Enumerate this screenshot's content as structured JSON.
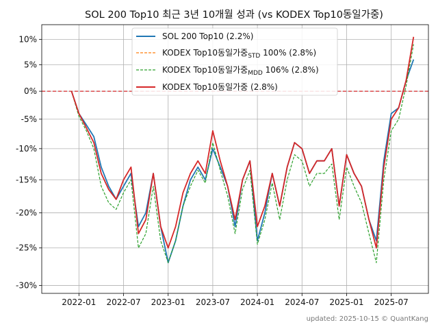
{
  "chart_data": {
    "type": "line",
    "title": "SOL 200 Top10 최근 3년 10개월 성과 (vs KODEX Top10동일가중)",
    "xlabel": "",
    "ylabel": "",
    "x_ticks": [
      "2022-01",
      "2022-07",
      "2023-01",
      "2023-07",
      "2024-01",
      "2024-07",
      "2025-01",
      "2025-07"
    ],
    "y_ticks": [
      {
        "value": 10,
        "label": "10%"
      },
      {
        "value": 5,
        "label": "5%"
      },
      {
        "value": 0,
        "label": "0%"
      },
      {
        "value": -5,
        "label": "-5%"
      },
      {
        "value": -10,
        "label": "-10%"
      },
      {
        "value": -15,
        "label": "-15%"
      },
      {
        "value": -20,
        "label": "-20%"
      },
      {
        "value": -25,
        "label": "-25%"
      },
      {
        "value": -30,
        "label": "-30%"
      }
    ],
    "xlim": [
      "2021-08",
      "2025-12"
    ],
    "ylim": [
      -31,
      13
    ],
    "y_scale": "log(1 + r)",
    "grid": true,
    "legend_position": "top",
    "reference_line": {
      "value": 0,
      "color": "#d62728",
      "style": "dashed"
    },
    "series": [
      {
        "name": "SOL 200 Top10 (2.2%)",
        "color": "#1f77b4",
        "style": "solid",
        "points": [
          [
            "2021-12",
            0
          ],
          [
            "2022-01",
            -4
          ],
          [
            "2022-02",
            -6
          ],
          [
            "2022-03",
            -8
          ],
          [
            "2022-04",
            -13
          ],
          [
            "2022-05",
            -16
          ],
          [
            "2022-06",
            -18
          ],
          [
            "2022-07",
            -16
          ],
          [
            "2022-08",
            -14
          ],
          [
            "2022-09",
            -22
          ],
          [
            "2022-10",
            -20
          ],
          [
            "2022-11",
            -14
          ],
          [
            "2022-12",
            -22
          ],
          [
            "2023-01",
            -27
          ],
          [
            "2023-02",
            -24
          ],
          [
            "2023-03",
            -19
          ],
          [
            "2023-04",
            -15
          ],
          [
            "2023-05",
            -13
          ],
          [
            "2023-06",
            -15
          ],
          [
            "2023-07",
            -10
          ],
          [
            "2023-08",
            -13
          ],
          [
            "2023-09",
            -16
          ],
          [
            "2023-10",
            -22
          ],
          [
            "2023-11",
            -15
          ],
          [
            "2023-12",
            -12
          ],
          [
            "2024-01",
            -24
          ],
          [
            "2024-02",
            -20
          ],
          [
            "2024-03",
            -14
          ],
          [
            "2024-04",
            -19
          ],
          [
            "2024-05",
            -13
          ],
          [
            "2024-06",
            -9
          ],
          [
            "2024-07",
            -10
          ],
          [
            "2024-08",
            -14
          ],
          [
            "2024-09",
            -12
          ],
          [
            "2024-10",
            -12
          ],
          [
            "2024-11",
            -10
          ],
          [
            "2024-12",
            -19
          ],
          [
            "2025-01",
            -11
          ],
          [
            "2025-02",
            -14
          ],
          [
            "2025-03",
            -16
          ],
          [
            "2025-04",
            -21
          ],
          [
            "2025-05",
            -24
          ],
          [
            "2025-06",
            -12
          ],
          [
            "2025-07",
            -4
          ],
          [
            "2025-08",
            -3
          ],
          [
            "2025-09",
            2
          ],
          [
            "2025-10",
            6
          ]
        ]
      },
      {
        "name": "KODEX Top10동일가중",
        "name_subscript": "STD",
        "name_suffix": " 100% (2.8%)",
        "color": "#ff7f0e",
        "style": "dashed",
        "points": [
          [
            "2021-12",
            0
          ],
          [
            "2022-01",
            -4
          ],
          [
            "2022-02",
            -6.5
          ],
          [
            "2022-03",
            -9
          ],
          [
            "2022-04",
            -14
          ],
          [
            "2022-05",
            -16.5
          ],
          [
            "2022-06",
            -18
          ],
          [
            "2022-07",
            -15
          ],
          [
            "2022-08",
            -13
          ],
          [
            "2022-09",
            -23
          ],
          [
            "2022-10",
            -21
          ],
          [
            "2022-11",
            -14
          ],
          [
            "2022-12",
            -22
          ],
          [
            "2023-01",
            -25
          ],
          [
            "2023-02",
            -22
          ],
          [
            "2023-03",
            -17
          ],
          [
            "2023-04",
            -14
          ],
          [
            "2023-05",
            -12
          ],
          [
            "2023-06",
            -14
          ],
          [
            "2023-07",
            -7
          ],
          [
            "2023-08",
            -12
          ],
          [
            "2023-09",
            -16
          ],
          [
            "2023-10",
            -21
          ],
          [
            "2023-11",
            -15
          ],
          [
            "2023-12",
            -12
          ],
          [
            "2024-01",
            -22
          ],
          [
            "2024-02",
            -19
          ],
          [
            "2024-03",
            -14
          ],
          [
            "2024-04",
            -19
          ],
          [
            "2024-05",
            -13
          ],
          [
            "2024-06",
            -9
          ],
          [
            "2024-07",
            -10
          ],
          [
            "2024-08",
            -14
          ],
          [
            "2024-09",
            -12
          ],
          [
            "2024-10",
            -12
          ],
          [
            "2024-11",
            -10
          ],
          [
            "2024-12",
            -19
          ],
          [
            "2025-01",
            -11
          ],
          [
            "2025-02",
            -14
          ],
          [
            "2025-03",
            -16
          ],
          [
            "2025-04",
            -21
          ],
          [
            "2025-05",
            -25
          ],
          [
            "2025-06",
            -13
          ],
          [
            "2025-07",
            -5
          ],
          [
            "2025-08",
            -3
          ],
          [
            "2025-09",
            2
          ],
          [
            "2025-10",
            10.5
          ]
        ]
      },
      {
        "name": "KODEX Top10동일가중",
        "name_subscript": "MDD",
        "name_suffix": " 106% (2.8%)",
        "color": "#2ca02c",
        "style": "dashed",
        "points": [
          [
            "2021-12",
            0
          ],
          [
            "2022-01",
            -4.5
          ],
          [
            "2022-02",
            -7
          ],
          [
            "2022-03",
            -10
          ],
          [
            "2022-04",
            -16
          ],
          [
            "2022-05",
            -18.5
          ],
          [
            "2022-06",
            -19.5
          ],
          [
            "2022-07",
            -17
          ],
          [
            "2022-08",
            -15
          ],
          [
            "2022-09",
            -25
          ],
          [
            "2022-10",
            -23
          ],
          [
            "2022-11",
            -16
          ],
          [
            "2022-12",
            -24
          ],
          [
            "2023-01",
            -27
          ],
          [
            "2023-02",
            -24
          ],
          [
            "2023-03",
            -19
          ],
          [
            "2023-04",
            -16
          ],
          [
            "2023-05",
            -13.5
          ],
          [
            "2023-06",
            -15.5
          ],
          [
            "2023-07",
            -9
          ],
          [
            "2023-08",
            -13.5
          ],
          [
            "2023-09",
            -17.5
          ],
          [
            "2023-10",
            -23
          ],
          [
            "2023-11",
            -16.5
          ],
          [
            "2023-12",
            -13.5
          ],
          [
            "2024-01",
            -24.5
          ],
          [
            "2024-02",
            -21
          ],
          [
            "2024-03",
            -15.5
          ],
          [
            "2024-04",
            -21
          ],
          [
            "2024-05",
            -15
          ],
          [
            "2024-06",
            -11
          ],
          [
            "2024-07",
            -12
          ],
          [
            "2024-08",
            -16
          ],
          [
            "2024-09",
            -14
          ],
          [
            "2024-10",
            -14
          ],
          [
            "2024-11",
            -12.5
          ],
          [
            "2024-12",
            -21
          ],
          [
            "2025-01",
            -13
          ],
          [
            "2025-02",
            -16
          ],
          [
            "2025-03",
            -18.5
          ],
          [
            "2025-04",
            -23
          ],
          [
            "2025-05",
            -27
          ],
          [
            "2025-06",
            -15
          ],
          [
            "2025-07",
            -7
          ],
          [
            "2025-08",
            -5
          ],
          [
            "2025-09",
            1
          ],
          [
            "2025-10",
            9
          ]
        ]
      },
      {
        "name": "KODEX Top10동일가중 (2.8%)",
        "color": "#d62728",
        "style": "solid",
        "points": [
          [
            "2021-12",
            0
          ],
          [
            "2022-01",
            -4
          ],
          [
            "2022-02",
            -6.5
          ],
          [
            "2022-03",
            -9
          ],
          [
            "2022-04",
            -14
          ],
          [
            "2022-05",
            -16.5
          ],
          [
            "2022-06",
            -18
          ],
          [
            "2022-07",
            -15
          ],
          [
            "2022-08",
            -13
          ],
          [
            "2022-09",
            -23
          ],
          [
            "2022-10",
            -21
          ],
          [
            "2022-11",
            -14
          ],
          [
            "2022-12",
            -22
          ],
          [
            "2023-01",
            -25
          ],
          [
            "2023-02",
            -22
          ],
          [
            "2023-03",
            -17
          ],
          [
            "2023-04",
            -14
          ],
          [
            "2023-05",
            -12
          ],
          [
            "2023-06",
            -14
          ],
          [
            "2023-07",
            -7
          ],
          [
            "2023-08",
            -12
          ],
          [
            "2023-09",
            -16
          ],
          [
            "2023-10",
            -21
          ],
          [
            "2023-11",
            -15
          ],
          [
            "2023-12",
            -12
          ],
          [
            "2024-01",
            -22
          ],
          [
            "2024-02",
            -19
          ],
          [
            "2024-03",
            -14
          ],
          [
            "2024-04",
            -19
          ],
          [
            "2024-05",
            -13
          ],
          [
            "2024-06",
            -9
          ],
          [
            "2024-07",
            -10
          ],
          [
            "2024-08",
            -14
          ],
          [
            "2024-09",
            -12
          ],
          [
            "2024-10",
            -12
          ],
          [
            "2024-11",
            -10
          ],
          [
            "2024-12",
            -19
          ],
          [
            "2025-01",
            -11
          ],
          [
            "2025-02",
            -14
          ],
          [
            "2025-03",
            -16
          ],
          [
            "2025-04",
            -21
          ],
          [
            "2025-05",
            -25
          ],
          [
            "2025-06",
            -13
          ],
          [
            "2025-07",
            -5
          ],
          [
            "2025-08",
            -3
          ],
          [
            "2025-09",
            2
          ],
          [
            "2025-10",
            10.5
          ]
        ]
      }
    ]
  },
  "footer": {
    "text": "updated: 2025-10-15 © QuantKang"
  }
}
